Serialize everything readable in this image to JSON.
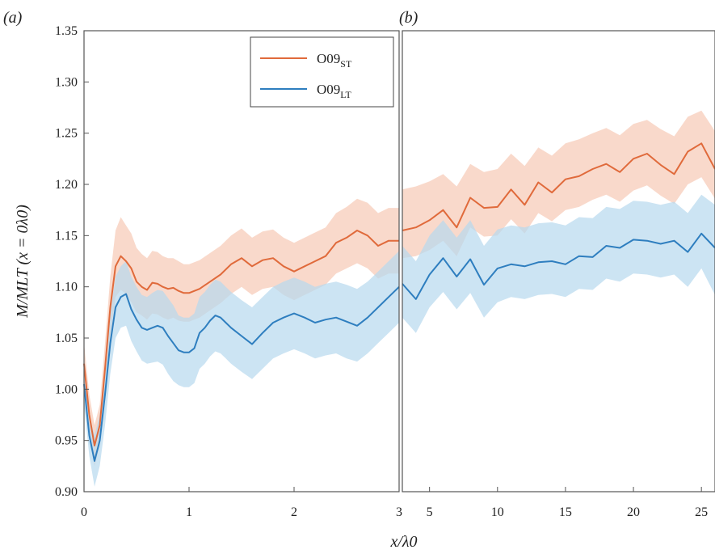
{
  "chart_data": [
    {
      "panel": "(a)",
      "type": "line",
      "xlabel": "x/λ0",
      "ylabel": "M/MLT (x = 0λ0)",
      "xlim": [
        0,
        3
      ],
      "ylim": [
        0.9,
        1.35
      ],
      "xticks": [
        "0",
        "1",
        "2",
        "3"
      ],
      "yticks": [
        "0.90",
        "0.95",
        "1.00",
        "1.05",
        "1.10",
        "1.15",
        "1.20",
        "1.25",
        "1.30",
        "1.35"
      ],
      "legend": {
        "position": "top-right",
        "entries": [
          {
            "base": "O09",
            "sub": "ST"
          },
          {
            "base": "O09",
            "sub": "LT"
          }
        ]
      },
      "series": [
        {
          "name": "O09ST",
          "color": "#e06a3b",
          "band_color": "#f6c9b5",
          "x": [
            0,
            0.05,
            0.1,
            0.15,
            0.2,
            0.25,
            0.3,
            0.35,
            0.4,
            0.45,
            0.5,
            0.55,
            0.6,
            0.65,
            0.7,
            0.75,
            0.8,
            0.85,
            0.9,
            0.95,
            1.0,
            1.1,
            1.2,
            1.3,
            1.4,
            1.5,
            1.6,
            1.7,
            1.8,
            1.9,
            2.0,
            2.1,
            2.2,
            2.3,
            2.4,
            2.5,
            2.6,
            2.7,
            2.8,
            2.9,
            3.0
          ],
          "y": [
            1.025,
            0.975,
            0.945,
            0.965,
            1.02,
            1.08,
            1.12,
            1.13,
            1.125,
            1.118,
            1.105,
            1.1,
            1.097,
            1.104,
            1.103,
            1.1,
            1.098,
            1.099,
            1.096,
            1.094,
            1.094,
            1.098,
            1.105,
            1.112,
            1.122,
            1.128,
            1.12,
            1.126,
            1.128,
            1.12,
            1.115,
            1.12,
            1.125,
            1.13,
            1.143,
            1.148,
            1.155,
            1.15,
            1.14,
            1.145,
            1.145
          ],
          "lower": [
            1.005,
            0.955,
            0.925,
            0.945,
            0.995,
            1.05,
            1.09,
            1.097,
            1.093,
            1.085,
            1.075,
            1.072,
            1.068,
            1.074,
            1.073,
            1.07,
            1.068,
            1.07,
            1.067,
            1.066,
            1.066,
            1.07,
            1.077,
            1.084,
            1.093,
            1.1,
            1.092,
            1.098,
            1.1,
            1.092,
            1.087,
            1.092,
            1.097,
            1.102,
            1.113,
            1.118,
            1.123,
            1.118,
            1.108,
            1.113,
            1.113
          ],
          "upper": [
            1.045,
            0.995,
            0.965,
            0.985,
            1.045,
            1.11,
            1.155,
            1.168,
            1.16,
            1.152,
            1.138,
            1.132,
            1.128,
            1.135,
            1.134,
            1.13,
            1.128,
            1.128,
            1.125,
            1.122,
            1.122,
            1.126,
            1.133,
            1.14,
            1.15,
            1.157,
            1.148,
            1.154,
            1.156,
            1.148,
            1.143,
            1.148,
            1.153,
            1.158,
            1.172,
            1.178,
            1.186,
            1.182,
            1.172,
            1.177,
            1.177
          ]
        },
        {
          "name": "O09LT",
          "color": "#2e7ebf",
          "band_color": "#b7d8ee",
          "x": [
            0,
            0.05,
            0.1,
            0.15,
            0.2,
            0.25,
            0.3,
            0.35,
            0.4,
            0.45,
            0.5,
            0.55,
            0.6,
            0.65,
            0.7,
            0.75,
            0.8,
            0.85,
            0.9,
            0.95,
            1.0,
            1.05,
            1.1,
            1.15,
            1.2,
            1.25,
            1.3,
            1.35,
            1.4,
            1.5,
            1.6,
            1.7,
            1.8,
            1.9,
            2.0,
            2.1,
            2.2,
            2.3,
            2.4,
            2.5,
            2.6,
            2.7,
            2.8,
            2.9,
            3.0
          ],
          "y": [
            1.005,
            0.955,
            0.93,
            0.95,
            0.995,
            1.045,
            1.08,
            1.09,
            1.093,
            1.078,
            1.068,
            1.06,
            1.058,
            1.06,
            1.062,
            1.06,
            1.052,
            1.045,
            1.038,
            1.036,
            1.036,
            1.04,
            1.055,
            1.06,
            1.067,
            1.072,
            1.07,
            1.065,
            1.06,
            1.052,
            1.044,
            1.055,
            1.065,
            1.07,
            1.074,
            1.07,
            1.065,
            1.068,
            1.07,
            1.066,
            1.062,
            1.07,
            1.08,
            1.09,
            1.1
          ],
          "lower": [
            0.985,
            0.935,
            0.905,
            0.925,
            0.965,
            1.015,
            1.05,
            1.06,
            1.062,
            1.047,
            1.037,
            1.028,
            1.025,
            1.026,
            1.027,
            1.024,
            1.015,
            1.008,
            1.004,
            1.002,
            1.002,
            1.006,
            1.02,
            1.025,
            1.032,
            1.037,
            1.035,
            1.03,
            1.025,
            1.017,
            1.01,
            1.02,
            1.03,
            1.035,
            1.039,
            1.035,
            1.03,
            1.033,
            1.035,
            1.03,
            1.027,
            1.035,
            1.045,
            1.055,
            1.065
          ],
          "upper": [
            1.025,
            0.975,
            0.955,
            0.975,
            1.025,
            1.075,
            1.11,
            1.12,
            1.125,
            1.11,
            1.1,
            1.092,
            1.09,
            1.094,
            1.097,
            1.096,
            1.089,
            1.082,
            1.072,
            1.07,
            1.07,
            1.074,
            1.09,
            1.095,
            1.102,
            1.107,
            1.105,
            1.1,
            1.095,
            1.087,
            1.08,
            1.09,
            1.1,
            1.105,
            1.109,
            1.105,
            1.1,
            1.103,
            1.105,
            1.102,
            1.098,
            1.105,
            1.115,
            1.125,
            1.135
          ]
        }
      ]
    },
    {
      "panel": "(b)",
      "type": "line",
      "xlim": [
        3,
        26
      ],
      "ylim": [
        0.9,
        1.35
      ],
      "xticks": [
        "5",
        "10",
        "15",
        "20",
        "25"
      ],
      "series": [
        {
          "name": "O09ST",
          "color": "#e06a3b",
          "band_color": "#f6c9b5",
          "x": [
            3,
            4,
            5,
            6,
            7,
            8,
            9,
            10,
            11,
            12,
            13,
            14,
            15,
            16,
            17,
            18,
            19,
            20,
            21,
            22,
            23,
            24,
            25,
            26
          ],
          "y": [
            1.155,
            1.158,
            1.165,
            1.175,
            1.158,
            1.187,
            1.177,
            1.178,
            1.195,
            1.18,
            1.202,
            1.192,
            1.205,
            1.208,
            1.215,
            1.22,
            1.212,
            1.225,
            1.23,
            1.219,
            1.21,
            1.232,
            1.24,
            1.215
          ],
          "lower": [
            1.128,
            1.13,
            1.136,
            1.145,
            1.13,
            1.158,
            1.149,
            1.15,
            1.166,
            1.152,
            1.172,
            1.164,
            1.175,
            1.178,
            1.185,
            1.19,
            1.183,
            1.194,
            1.199,
            1.189,
            1.181,
            1.2,
            1.207,
            1.186
          ],
          "upper": [
            1.195,
            1.198,
            1.203,
            1.21,
            1.198,
            1.22,
            1.212,
            1.215,
            1.23,
            1.218,
            1.236,
            1.228,
            1.24,
            1.244,
            1.25,
            1.255,
            1.248,
            1.259,
            1.263,
            1.254,
            1.247,
            1.266,
            1.272,
            1.252
          ]
        },
        {
          "name": "O09LT",
          "color": "#2e7ebf",
          "band_color": "#b7d8ee",
          "x": [
            3,
            4,
            5,
            6,
            7,
            8,
            9,
            10,
            11,
            12,
            13,
            14,
            15,
            16,
            17,
            18,
            19,
            20,
            21,
            22,
            23,
            24,
            25,
            26
          ],
          "y": [
            1.103,
            1.088,
            1.112,
            1.128,
            1.11,
            1.127,
            1.102,
            1.118,
            1.122,
            1.12,
            1.124,
            1.125,
            1.122,
            1.13,
            1.129,
            1.14,
            1.138,
            1.146,
            1.145,
            1.142,
            1.145,
            1.134,
            1.152,
            1.138
          ],
          "lower": [
            1.07,
            1.055,
            1.08,
            1.095,
            1.078,
            1.094,
            1.07,
            1.085,
            1.09,
            1.088,
            1.092,
            1.093,
            1.09,
            1.098,
            1.097,
            1.108,
            1.105,
            1.113,
            1.112,
            1.109,
            1.112,
            1.1,
            1.118,
            1.092
          ],
          "upper": [
            1.14,
            1.125,
            1.15,
            1.165,
            1.148,
            1.165,
            1.14,
            1.156,
            1.16,
            1.158,
            1.162,
            1.163,
            1.16,
            1.168,
            1.167,
            1.178,
            1.176,
            1.184,
            1.183,
            1.18,
            1.183,
            1.172,
            1.19,
            1.18
          ]
        }
      ]
    }
  ]
}
